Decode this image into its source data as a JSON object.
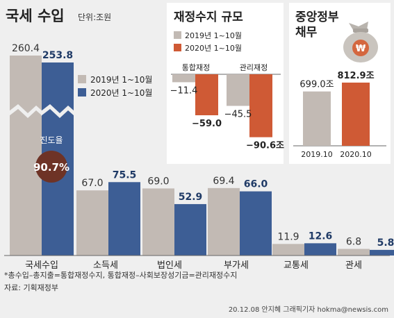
{
  "chart_data": [
    {
      "type": "bar",
      "title": "국세 수입",
      "subtitle": "단위:조원",
      "categories": [
        "국세수입",
        "소득세",
        "법인세",
        "부가세",
        "교통세",
        "관세"
      ],
      "series": [
        {
          "name": "2019년 1~10월",
          "values": [
            260.4,
            67.0,
            69.0,
            69.4,
            11.9,
            6.8
          ]
        },
        {
          "name": "2020년 1~10월",
          "values": [
            253.8,
            75.5,
            52.9,
            66.0,
            12.6,
            5.8
          ]
        }
      ],
      "value_labels": [
        [
          "260.4",
          "253.8"
        ],
        [
          "67.0",
          "75.5"
        ],
        [
          "69.0",
          "52.9"
        ],
        [
          "69.4",
          "66.0"
        ],
        [
          "11.9",
          "12.6"
        ],
        [
          "6.8",
          "5.8"
        ]
      ],
      "annotation": {
        "label": "진도율",
        "value": "90.7%"
      },
      "axis_break": true,
      "legend_position": "top-right"
    },
    {
      "type": "bar",
      "title": "재정수지 규모",
      "categories": [
        "통합재정",
        "관리재정"
      ],
      "series": [
        {
          "name": "2019년 1~10월",
          "values": [
            -11.4,
            -45.5
          ]
        },
        {
          "name": "2020년 1~10월",
          "values": [
            -59.0,
            -90.6
          ]
        }
      ],
      "value_labels": [
        [
          "−11.4",
          "−59.0"
        ],
        [
          "−45.5",
          "−90.6조"
        ]
      ],
      "legend_position": "top"
    },
    {
      "type": "bar",
      "title": "중앙정부 채무",
      "categories": [
        "2019.10",
        "2020.10"
      ],
      "values": [
        699.0,
        812.9
      ],
      "value_labels": [
        "699.0조",
        "812.9조"
      ],
      "icon": "money-bag-won-icon"
    }
  ],
  "footnotes": {
    "line1": "*총수입–총지출=통합재정수지,   통합재정–사회보장성기금=관리재정수지",
    "line2": "자료: 기획재정부"
  },
  "credit": "20.12.08 안지혜 그래픽기자 hokma@newsis.com",
  "colors": {
    "s2019": "#c2bab4",
    "s2020": "#3d5e95",
    "s2020_deficit": "#cf5a35",
    "background": "#efefef",
    "panel": "#ffffff",
    "circle": "#6e3326"
  }
}
